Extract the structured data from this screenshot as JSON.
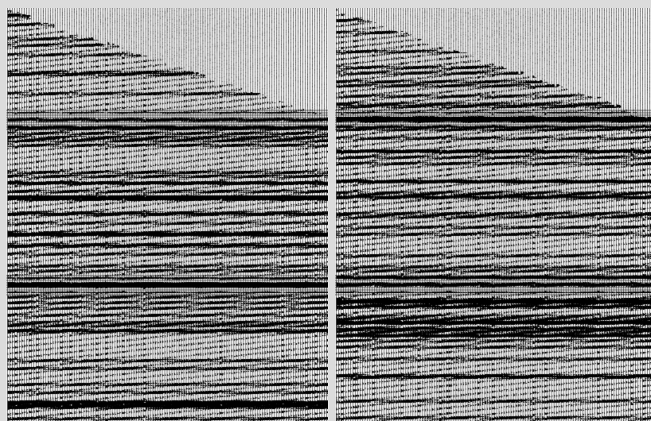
{
  "figure": {
    "description_panels": [
      "left",
      "right"
    ],
    "background_color": "#dcdcdc",
    "panel_color": "#ffffff",
    "ink_color": "#000000",
    "style": "seismic wiggle-trace display",
    "trace_count_left": 135,
    "trace_count_right": 132,
    "strong_horizons_fraction": [
      0.27,
      0.67
    ],
    "first_break_start_fraction": 0.0,
    "first_break_end_fraction": 0.26
  }
}
